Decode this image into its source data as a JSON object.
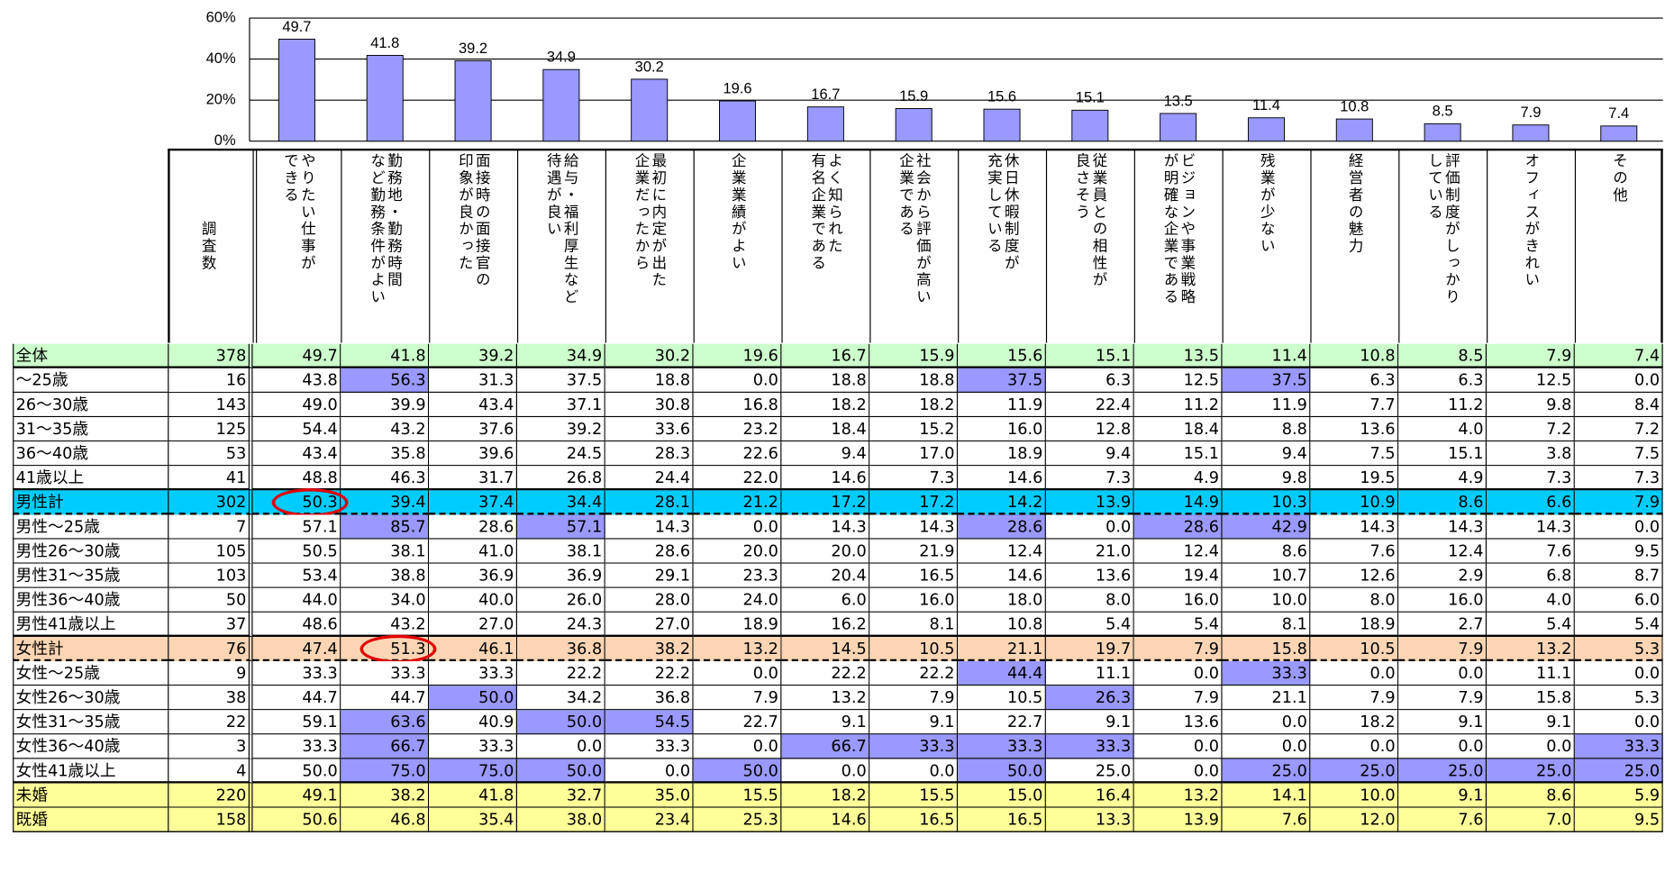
{
  "chart_data": {
    "type": "bar",
    "values": [
      49.7,
      41.8,
      39.2,
      34.9,
      30.2,
      19.6,
      16.7,
      15.9,
      15.6,
      15.1,
      13.5,
      11.4,
      10.8,
      8.5,
      7.9,
      7.4
    ],
    "color": "#9999ff",
    "ylim": [
      0,
      60
    ],
    "yticks": [
      {
        "value": 0,
        "label": "0%"
      },
      {
        "value": 20,
        "label": "20%"
      },
      {
        "value": 40,
        "label": "40%"
      },
      {
        "value": 60,
        "label": "60%"
      }
    ],
    "grid": true
  },
  "table": {
    "count_header": "調査数",
    "columns": [
      [
        "やりたい仕事が",
        "できる"
      ],
      [
        "勤務地・勤務時間",
        "など勤務条件がよい"
      ],
      [
        "面接時の面接官の",
        "印象が良かった"
      ],
      [
        "給与・福利厚生など",
        "待遇が良い"
      ],
      [
        "最初に内定が出た",
        "企業だったから"
      ],
      [
        "企業業績がよい"
      ],
      [
        "よく知られた",
        "有名企業である"
      ],
      [
        "社会から評価が高い",
        "企業である"
      ],
      [
        "休日休暇制度が",
        "充実している"
      ],
      [
        "従業員との相性が",
        "良さそう"
      ],
      [
        "ビジョンや事業戦略",
        "が明確な企業である"
      ],
      [
        "残業が少ない"
      ],
      [
        "経営者の魅力"
      ],
      [
        "評価制度がしっかり",
        "している"
      ],
      [
        "オフィスがきれい"
      ],
      [
        "その他"
      ]
    ],
    "rows": [
      {
        "label": "全体",
        "n": 378,
        "color": "#ccffcc",
        "divider": "solid",
        "values": [
          "49.7",
          "41.8",
          "39.2",
          "34.9",
          "30.2",
          "19.6",
          "16.7",
          "15.9",
          "15.6",
          "15.1",
          "13.5",
          "11.4",
          "10.8",
          "8.5",
          "7.9",
          "7.4"
        ]
      },
      {
        "label": "～25歳",
        "n": 16,
        "highlight": [
          1,
          8,
          11
        ],
        "values": [
          "43.8",
          "56.3",
          "31.3",
          "37.5",
          "18.8",
          "0.0",
          "18.8",
          "18.8",
          "37.5",
          "6.3",
          "12.5",
          "37.5",
          "6.3",
          "6.3",
          "12.5",
          "0.0"
        ]
      },
      {
        "label": "26～30歳",
        "n": 143,
        "values": [
          "49.0",
          "39.9",
          "43.4",
          "37.1",
          "30.8",
          "16.8",
          "18.2",
          "18.2",
          "11.9",
          "22.4",
          "11.2",
          "11.9",
          "7.7",
          "11.2",
          "9.8",
          "8.4"
        ]
      },
      {
        "label": "31～35歳",
        "n": 125,
        "values": [
          "54.4",
          "43.2",
          "37.6",
          "39.2",
          "33.6",
          "23.2",
          "18.4",
          "15.2",
          "16.0",
          "12.8",
          "18.4",
          "8.8",
          "13.6",
          "4.0",
          "7.2",
          "7.2"
        ]
      },
      {
        "label": "36～40歳",
        "n": 53,
        "values": [
          "43.4",
          "35.8",
          "39.6",
          "24.5",
          "28.3",
          "22.6",
          "9.4",
          "17.0",
          "18.9",
          "9.4",
          "15.1",
          "9.4",
          "7.5",
          "15.1",
          "3.8",
          "7.5"
        ]
      },
      {
        "label": "41歳以上",
        "n": 41,
        "divider": "solid",
        "values": [
          "48.8",
          "46.3",
          "31.7",
          "26.8",
          "24.4",
          "22.0",
          "14.6",
          "7.3",
          "14.6",
          "7.3",
          "4.9",
          "9.8",
          "19.5",
          "4.9",
          "7.3",
          "7.3"
        ]
      },
      {
        "label": "男性計",
        "n": 302,
        "color": "#00ccff",
        "divider": "dashed",
        "circled": [
          0
        ],
        "values": [
          "50.3",
          "39.4",
          "37.4",
          "34.4",
          "28.1",
          "21.2",
          "17.2",
          "17.2",
          "14.2",
          "13.9",
          "14.9",
          "10.3",
          "10.9",
          "8.6",
          "6.6",
          "7.9"
        ]
      },
      {
        "label": "男性～25歳",
        "n": 7,
        "highlight": [
          1,
          3,
          8,
          10,
          11
        ],
        "values": [
          "57.1",
          "85.7",
          "28.6",
          "57.1",
          "14.3",
          "0.0",
          "14.3",
          "14.3",
          "28.6",
          "0.0",
          "28.6",
          "42.9",
          "14.3",
          "14.3",
          "14.3",
          "0.0"
        ]
      },
      {
        "label": "男性26～30歳",
        "n": 105,
        "values": [
          "50.5",
          "38.1",
          "41.0",
          "38.1",
          "28.6",
          "20.0",
          "20.0",
          "21.9",
          "12.4",
          "21.0",
          "12.4",
          "8.6",
          "7.6",
          "12.4",
          "7.6",
          "9.5"
        ]
      },
      {
        "label": "男性31～35歳",
        "n": 103,
        "values": [
          "53.4",
          "38.8",
          "36.9",
          "36.9",
          "29.1",
          "23.3",
          "20.4",
          "16.5",
          "14.6",
          "13.6",
          "19.4",
          "10.7",
          "12.6",
          "2.9",
          "6.8",
          "8.7"
        ]
      },
      {
        "label": "男性36～40歳",
        "n": 50,
        "values": [
          "44.0",
          "34.0",
          "40.0",
          "26.0",
          "28.0",
          "24.0",
          "6.0",
          "16.0",
          "18.0",
          "8.0",
          "16.0",
          "10.0",
          "8.0",
          "16.0",
          "4.0",
          "6.0"
        ]
      },
      {
        "label": "男性41歳以上",
        "n": 37,
        "divider": "solid",
        "values": [
          "48.6",
          "43.2",
          "27.0",
          "24.3",
          "27.0",
          "18.9",
          "16.2",
          "8.1",
          "10.8",
          "5.4",
          "5.4",
          "8.1",
          "18.9",
          "2.7",
          "5.4",
          "5.4"
        ]
      },
      {
        "label": "女性計",
        "n": 76,
        "color": "#fcd5b4",
        "divider": "dashed",
        "circled": [
          1
        ],
        "values": [
          "47.4",
          "51.3",
          "46.1",
          "36.8",
          "38.2",
          "13.2",
          "14.5",
          "10.5",
          "21.1",
          "19.7",
          "7.9",
          "15.8",
          "10.5",
          "7.9",
          "13.2",
          "5.3"
        ]
      },
      {
        "label": "女性～25歳",
        "n": 9,
        "highlight": [
          8,
          11
        ],
        "values": [
          "33.3",
          "33.3",
          "33.3",
          "22.2",
          "22.2",
          "0.0",
          "22.2",
          "22.2",
          "44.4",
          "11.1",
          "0.0",
          "33.3",
          "0.0",
          "0.0",
          "11.1",
          "0.0"
        ]
      },
      {
        "label": "女性26～30歳",
        "n": 38,
        "highlight": [
          2,
          9
        ],
        "values": [
          "44.7",
          "44.7",
          "50.0",
          "34.2",
          "36.8",
          "7.9",
          "13.2",
          "7.9",
          "10.5",
          "26.3",
          "7.9",
          "21.1",
          "7.9",
          "7.9",
          "15.8",
          "5.3"
        ]
      },
      {
        "label": "女性31～35歳",
        "n": 22,
        "highlight": [
          1,
          3,
          4
        ],
        "values": [
          "59.1",
          "63.6",
          "40.9",
          "50.0",
          "54.5",
          "22.7",
          "9.1",
          "9.1",
          "22.7",
          "9.1",
          "13.6",
          "0.0",
          "18.2",
          "9.1",
          "9.1",
          "0.0"
        ]
      },
      {
        "label": "女性36～40歳",
        "n": 3,
        "highlight": [
          1,
          6,
          7,
          8,
          9,
          15
        ],
        "values": [
          "33.3",
          "66.7",
          "33.3",
          "0.0",
          "33.3",
          "0.0",
          "66.7",
          "33.3",
          "33.3",
          "33.3",
          "0.0",
          "0.0",
          "0.0",
          "0.0",
          "0.0",
          "33.3"
        ]
      },
      {
        "label": "女性41歳以上",
        "n": 4,
        "divider": "solid",
        "highlight": [
          1,
          2,
          3,
          5,
          8,
          11,
          12,
          13,
          14,
          15
        ],
        "values": [
          "50.0",
          "75.0",
          "75.0",
          "50.0",
          "0.0",
          "50.0",
          "0.0",
          "0.0",
          "50.0",
          "25.0",
          "0.0",
          "25.0",
          "25.0",
          "25.0",
          "25.0",
          "25.0"
        ]
      },
      {
        "label": "未婚",
        "n": 220,
        "color": "#ffff99",
        "values": [
          "49.1",
          "38.2",
          "41.8",
          "32.7",
          "35.0",
          "15.5",
          "18.2",
          "15.5",
          "15.0",
          "16.4",
          "13.2",
          "14.1",
          "10.0",
          "9.1",
          "8.6",
          "5.9"
        ]
      },
      {
        "label": "既婚",
        "n": 158,
        "color": "#ffff99",
        "values": [
          "50.6",
          "46.8",
          "35.4",
          "38.0",
          "23.4",
          "25.3",
          "14.6",
          "16.5",
          "16.5",
          "13.3",
          "13.9",
          "7.6",
          "12.0",
          "7.6",
          "7.0",
          "9.5"
        ]
      }
    ],
    "highlight_color": "#9999ff",
    "circle_color": "#e00000"
  }
}
